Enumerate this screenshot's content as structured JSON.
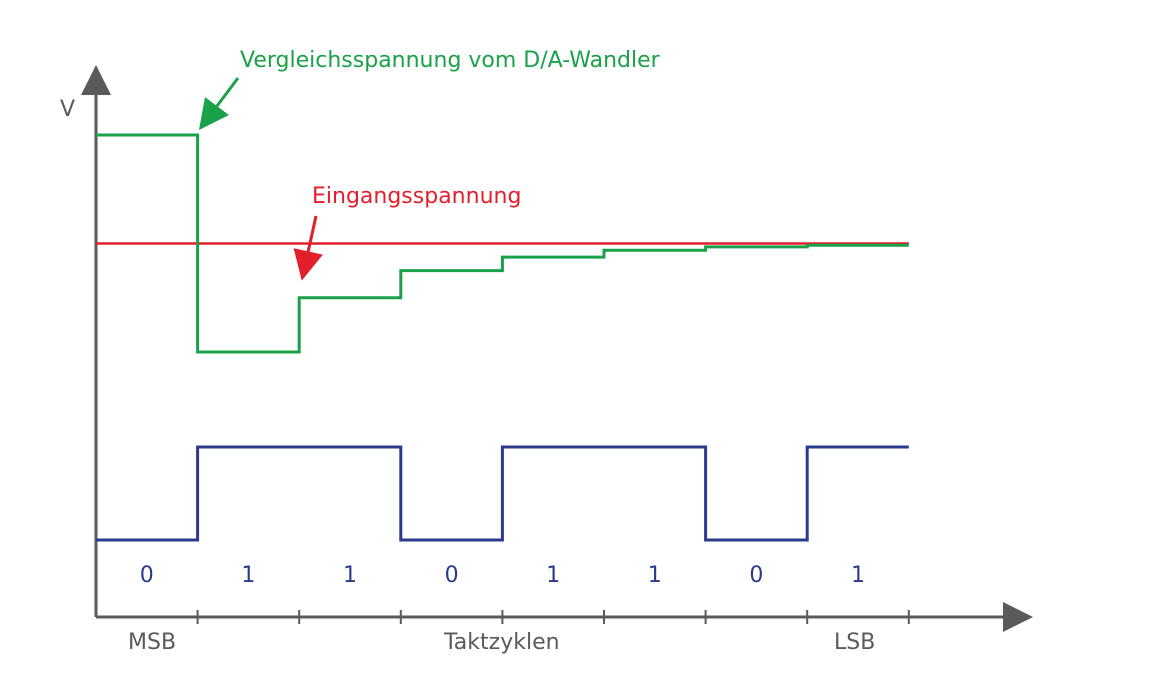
{
  "chart_data": {
    "type": "line",
    "title": "",
    "ylabel": "V",
    "xlabel": "Taktzyklen",
    "x_start_label": "MSB",
    "x_end_label": "LSB",
    "cycles": 8,
    "input_voltage_level": 0.5,
    "bits": [
      "0",
      "1",
      "1",
      "0",
      "1",
      "1",
      "0",
      "1"
    ],
    "series": [
      {
        "name": "Vergleichsspannung vom D/A-Wandler",
        "color": "#1aa14a",
        "values": [
          1.0,
          0.0,
          0.25,
          0.375,
          0.4375,
          0.46875,
          0.484375,
          0.4921875
        ]
      },
      {
        "name": "Eingangsspannung",
        "color": "#e2202c",
        "values": [
          0.5,
          0.5,
          0.5,
          0.5,
          0.5,
          0.5,
          0.5,
          0.5
        ]
      }
    ]
  },
  "annotations": {
    "dac_label": "Vergleichsspannung vom D/A-Wandler",
    "input_label": "Eingangsspannung"
  },
  "colors": {
    "axis": "#5a5a5a",
    "dac": "#1aa14a",
    "input": "#e2202c",
    "bits": "#2b3a8c"
  }
}
